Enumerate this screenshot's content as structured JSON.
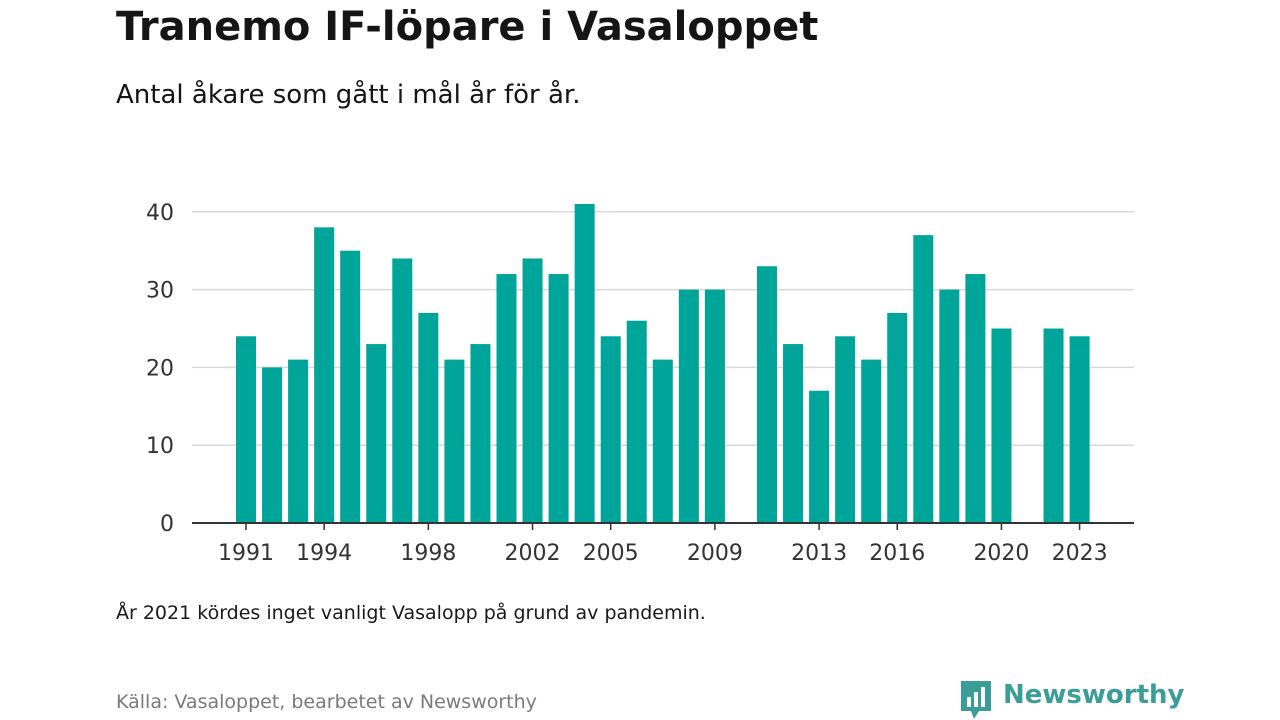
{
  "title": "Tranemo IF-löpare i Vasaloppet",
  "subtitle": "Antal åkare som gått i mål år för år.",
  "note": "År 2021 kördes inget vanligt Vasalopp på grund av pandemin.",
  "source": "Källa: Vasaloppet, bearbetet av Newsworthy",
  "brand": {
    "name": "Newsworthy",
    "icon": "newsworthy-logo-icon",
    "color": "#3a9d98"
  },
  "colors": {
    "bar": "#00a59a",
    "grid": "#d9d9d9",
    "axis": "#333333",
    "tick_text": "#333333"
  },
  "chart_data": {
    "type": "bar",
    "x": [
      1991,
      1992,
      1993,
      1994,
      1995,
      1996,
      1997,
      1998,
      1999,
      2000,
      2001,
      2002,
      2003,
      2004,
      2005,
      2006,
      2007,
      2008,
      2009,
      2010,
      2011,
      2012,
      2013,
      2014,
      2015,
      2016,
      2017,
      2018,
      2019,
      2020,
      2021,
      2022,
      2023
    ],
    "values": [
      24,
      20,
      21,
      38,
      35,
      23,
      34,
      27,
      21,
      23,
      32,
      34,
      32,
      41,
      24,
      26,
      21,
      30,
      30,
      null,
      33,
      23,
      17,
      24,
      21,
      27,
      37,
      30,
      32,
      25,
      null,
      25,
      24
    ],
    "xticks": [
      1991,
      1994,
      1998,
      2002,
      2005,
      2009,
      2013,
      2016,
      2020,
      2023
    ],
    "yticks": [
      0,
      10,
      20,
      30,
      40
    ],
    "ylim": [
      0,
      42
    ],
    "xlabel": "",
    "ylabel": "",
    "grid": true
  }
}
